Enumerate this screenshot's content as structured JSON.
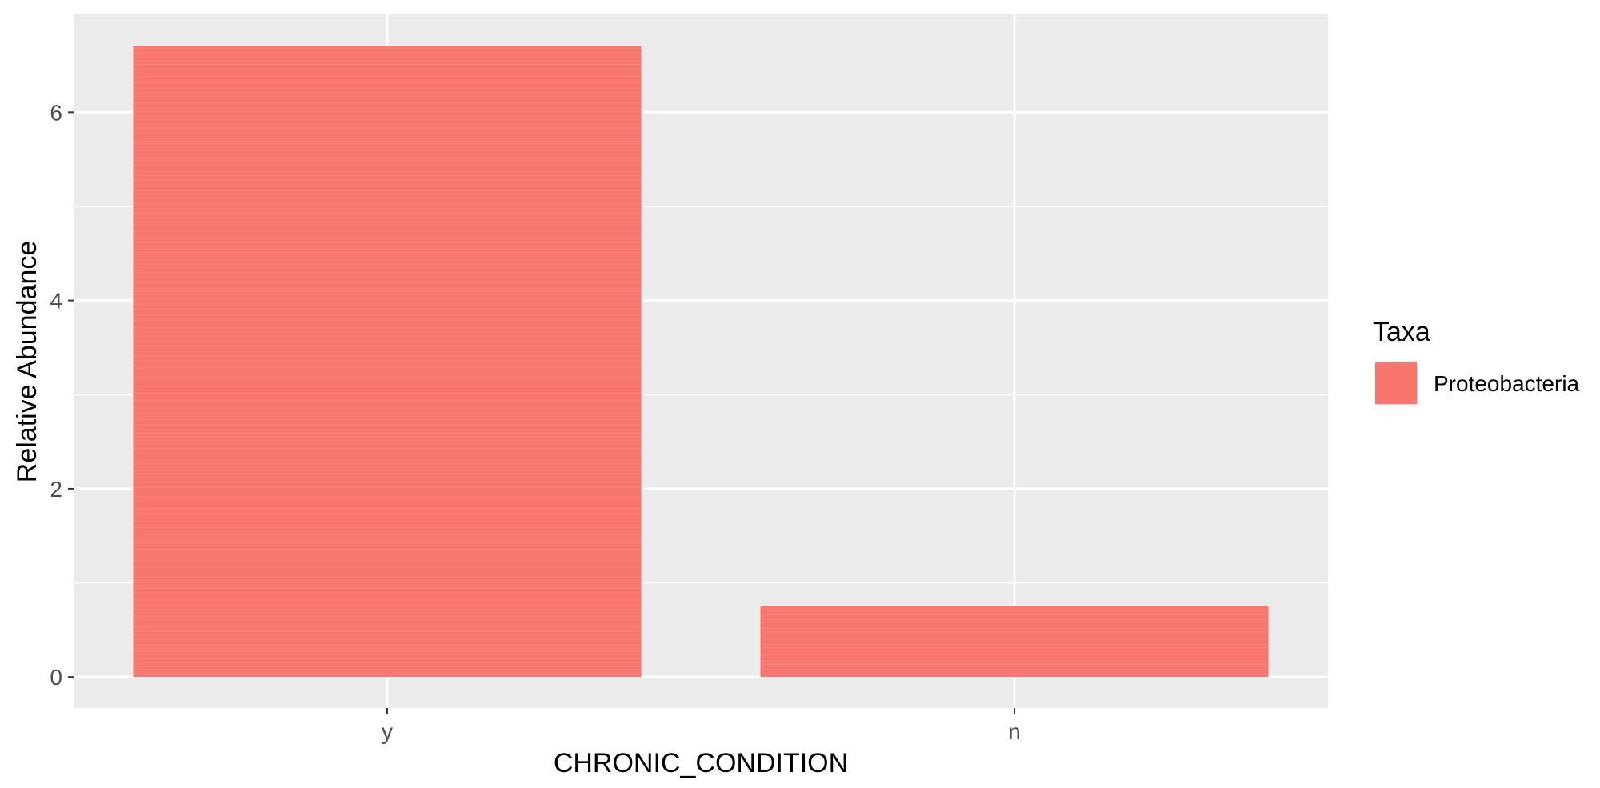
{
  "chart_data": {
    "type": "bar",
    "categories": [
      "y",
      "n"
    ],
    "series": [
      {
        "name": "Proteobacteria",
        "values": [
          6.7,
          0.75
        ]
      }
    ],
    "title": "",
    "xlabel": "CHRONIC_CONDITION",
    "ylabel": "Relative Abundance",
    "ylim": [
      -0.33,
      7.04
    ],
    "yticks": [
      0,
      2,
      4,
      6
    ],
    "grid": true,
    "legend": {
      "title": "Taxa",
      "position": "right"
    },
    "colors": {
      "bar": "#f8766d",
      "panel": "#ebebeb",
      "grid": "#ffffff",
      "bar_stripe": "#fa9a92"
    }
  }
}
